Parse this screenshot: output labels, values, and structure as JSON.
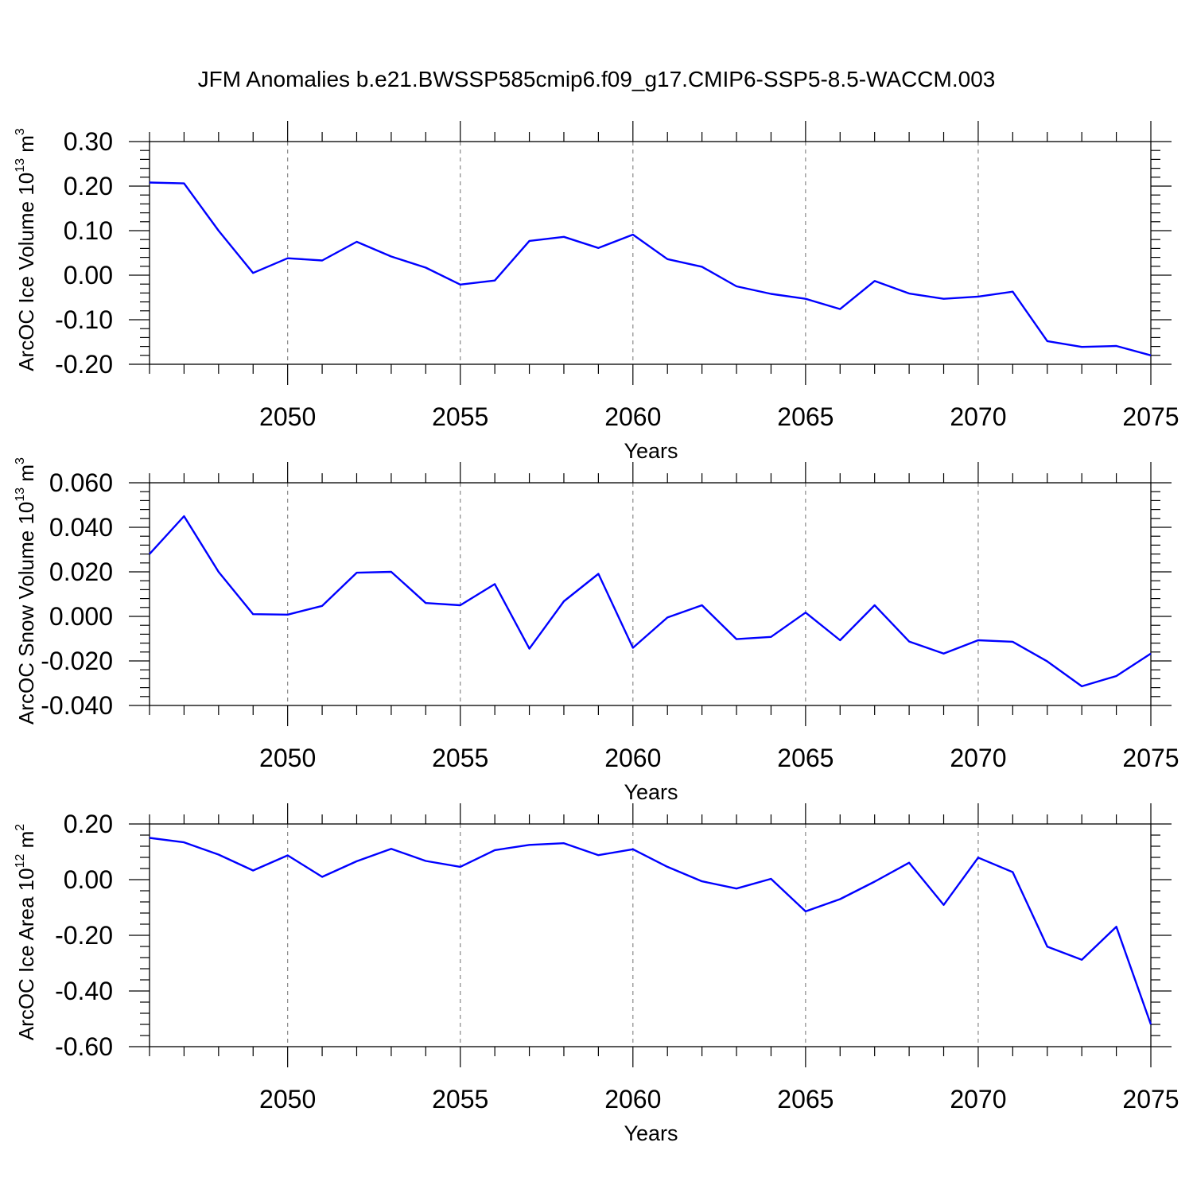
{
  "title": "JFM Anomalies b.e21.BWSSP585cmip6.f09_g17.CMIP6-SSP5-8.5-WACCM.003",
  "colors": {
    "line": "#0000ff",
    "axis": "#000000",
    "grid": "#888888"
  },
  "chart_data": [
    {
      "type": "line",
      "title": "",
      "xlabel": "Years",
      "ylabel": {
        "text": "ArcOC Ice Volume 10",
        "sup": "13",
        "unit": " m",
        "unit_sup": "3"
      },
      "xlim": [
        2046,
        2075
      ],
      "ylim": [
        -0.2,
        0.3
      ],
      "xticks": [
        2050,
        2055,
        2060,
        2065,
        2070,
        2075
      ],
      "yticks": [
        -0.2,
        -0.1,
        0.0,
        0.1,
        0.2,
        0.3
      ],
      "ytick_labels": [
        "-0.20",
        "-0.10",
        "0.00",
        "0.10",
        "0.20",
        "0.30"
      ],
      "grid": "vertical dashed at major x ticks",
      "series": [
        {
          "x": [
            2046,
            2047,
            2048,
            2049,
            2050,
            2051,
            2052,
            2053,
            2054,
            2055,
            2056,
            2057,
            2058,
            2059,
            2060,
            2061,
            2062,
            2063,
            2064,
            2065,
            2066,
            2067,
            2068,
            2069,
            2070,
            2071,
            2072,
            2073,
            2074,
            2075
          ],
          "values": [
            0.208,
            0.206,
            0.1,
            0.005,
            0.038,
            0.033,
            0.075,
            0.042,
            0.017,
            -0.021,
            -0.012,
            0.077,
            0.086,
            0.061,
            0.091,
            0.036,
            0.019,
            -0.025,
            -0.042,
            -0.053,
            -0.076,
            -0.013,
            -0.041,
            -0.053,
            -0.048,
            -0.037,
            -0.148,
            -0.161,
            -0.159,
            -0.18
          ]
        }
      ]
    },
    {
      "type": "line",
      "title": "",
      "xlabel": "Years",
      "ylabel": {
        "text": "ArcOC Snow Volume 10",
        "sup": "13",
        "unit": " m",
        "unit_sup": "3"
      },
      "xlim": [
        2046,
        2075
      ],
      "ylim": [
        -0.04,
        0.06
      ],
      "xticks": [
        2050,
        2055,
        2060,
        2065,
        2070,
        2075
      ],
      "yticks": [
        -0.04,
        -0.02,
        0.0,
        0.02,
        0.04,
        0.06
      ],
      "ytick_labels": [
        "-0.040",
        "-0.020",
        "0.000",
        "0.020",
        "0.040",
        "0.060"
      ],
      "grid": "vertical dashed at major x ticks",
      "series": [
        {
          "x": [
            2046,
            2047,
            2048,
            2049,
            2050,
            2051,
            2052,
            2053,
            2054,
            2055,
            2056,
            2057,
            2058,
            2059,
            2060,
            2061,
            2062,
            2063,
            2064,
            2065,
            2066,
            2067,
            2068,
            2069,
            2070,
            2071,
            2072,
            2073,
            2074,
            2075
          ],
          "values": [
            0.028,
            0.045,
            0.02,
            0.001,
            0.0008,
            0.0047,
            0.0196,
            0.02,
            0.006,
            0.005,
            0.0145,
            -0.0145,
            0.0068,
            0.0191,
            -0.0141,
            -0.0005,
            0.005,
            -0.0102,
            -0.0092,
            0.0017,
            -0.0107,
            0.005,
            -0.0113,
            -0.0167,
            -0.0107,
            -0.0114,
            -0.0202,
            -0.0314,
            -0.0268,
            -0.0167
          ]
        }
      ]
    },
    {
      "type": "line",
      "title": "",
      "xlabel": "Years",
      "ylabel": {
        "text": "ArcOC Ice Area 10",
        "sup": "12",
        "unit": " m",
        "unit_sup": "2"
      },
      "xlim": [
        2046,
        2075
      ],
      "ylim": [
        -0.6,
        0.2
      ],
      "xticks": [
        2050,
        2055,
        2060,
        2065,
        2070,
        2075
      ],
      "yticks": [
        -0.6,
        -0.4,
        -0.2,
        0.0,
        0.2
      ],
      "ytick_labels": [
        "-0.60",
        "-0.40",
        "-0.20",
        "0.00",
        "0.20"
      ],
      "grid": "vertical dashed at major x ticks",
      "series": [
        {
          "x": [
            2046,
            2047,
            2048,
            2049,
            2050,
            2051,
            2052,
            2053,
            2054,
            2055,
            2056,
            2057,
            2058,
            2059,
            2060,
            2061,
            2062,
            2063,
            2064,
            2065,
            2066,
            2067,
            2068,
            2069,
            2070,
            2071,
            2072,
            2073,
            2074,
            2075
          ],
          "values": [
            0.15,
            0.134,
            0.09,
            0.033,
            0.087,
            0.01,
            0.066,
            0.111,
            0.067,
            0.046,
            0.106,
            0.125,
            0.131,
            0.088,
            0.109,
            0.046,
            -0.006,
            -0.032,
            0.003,
            -0.114,
            -0.07,
            -0.007,
            0.061,
            -0.091,
            0.079,
            0.027,
            -0.241,
            -0.288,
            -0.169,
            -0.52
          ]
        }
      ]
    }
  ]
}
